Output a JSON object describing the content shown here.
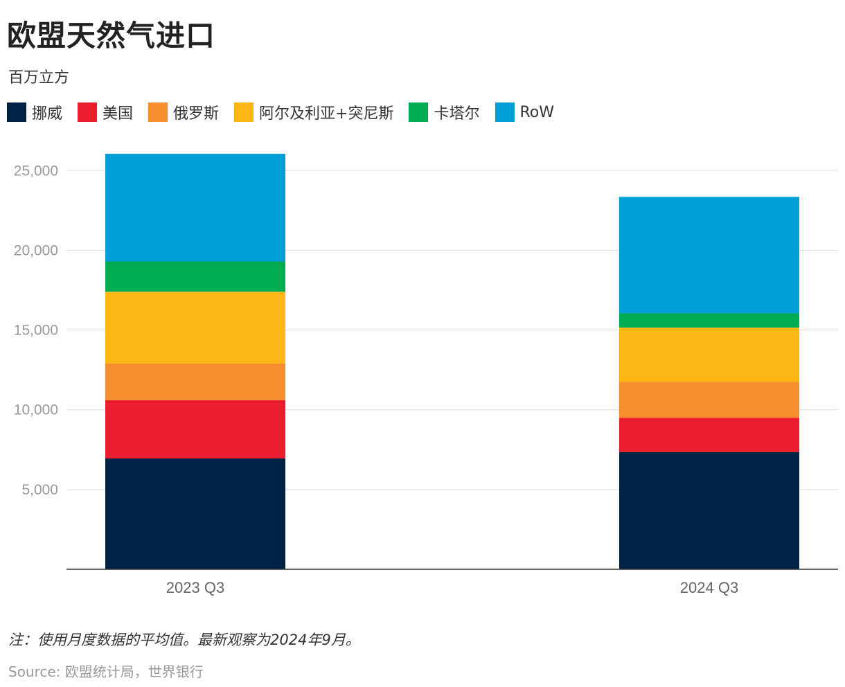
{
  "title": "欧盟天然气进口",
  "subtitle": "百万立方",
  "note": "注：使用月度数据的平均值。最新观察为2024年9月。",
  "source": "Source: 欧盟统计局，世界银行",
  "chart_data": {
    "type": "bar",
    "stacked": true,
    "categories": [
      "2023 Q3",
      "2024 Q3"
    ],
    "series": [
      {
        "name": "挪威",
        "color": "#002244",
        "values": [
          6950,
          7350
        ]
      },
      {
        "name": "美国",
        "color": "#EB1C2D",
        "values": [
          3650,
          2150
        ]
      },
      {
        "name": "俄罗斯",
        "color": "#F68D2E",
        "values": [
          2300,
          2250
        ]
      },
      {
        "name": "阿尔及利亚+突尼斯",
        "color": "#FDB714",
        "values": [
          4500,
          3400
        ]
      },
      {
        "name": "卡塔尔",
        "color": "#00AB51",
        "values": [
          1900,
          900
        ]
      },
      {
        "name": "RoW",
        "color": "#009FDA",
        "values": [
          6750,
          7300
        ]
      }
    ],
    "ylim": [
      0,
      27000
    ],
    "yticks": [
      5000,
      10000,
      15000,
      20000,
      25000
    ],
    "ytick_labels": [
      "5,000",
      "10,000",
      "15,000",
      "20,000",
      "25,000"
    ],
    "grid": true,
    "legend_position": "top-left"
  }
}
